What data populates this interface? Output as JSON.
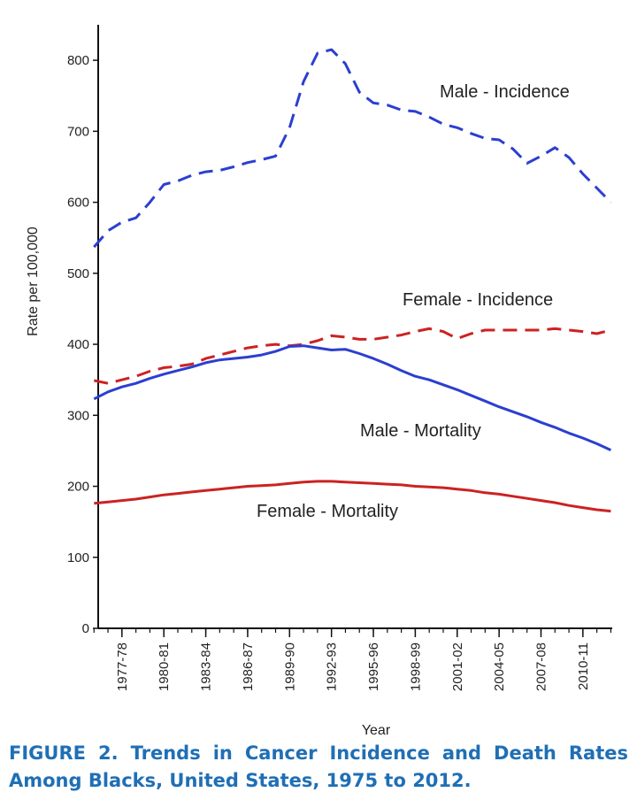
{
  "caption": {
    "line1": "FIGURE 2. Trends in Cancer Incidence and Death Rates",
    "line2": "Among Blacks, United States, 1975 to 2012."
  },
  "chart_data": {
    "type": "line",
    "xlabel": "Year",
    "ylabel": "Rate per 100,000",
    "ylim": [
      0,
      850
    ],
    "yticks": [
      0,
      100,
      200,
      300,
      400,
      500,
      600,
      700,
      800
    ],
    "x": [
      1975,
      1976,
      1977,
      1978,
      1979,
      1980,
      1981,
      1982,
      1983,
      1984,
      1985,
      1986,
      1987,
      1988,
      1989,
      1990,
      1991,
      1992,
      1993,
      1994,
      1995,
      1996,
      1997,
      1998,
      1999,
      2000,
      2001,
      2002,
      2003,
      2004,
      2005,
      2006,
      2007,
      2008,
      2009,
      2010,
      2011,
      2012
    ],
    "xticks": [
      {
        "x": 1977,
        "label": "1977-78"
      },
      {
        "x": 1980,
        "label": "1980-81"
      },
      {
        "x": 1983,
        "label": "1983-84"
      },
      {
        "x": 1986,
        "label": "1986-87"
      },
      {
        "x": 1989,
        "label": "1989-90"
      },
      {
        "x": 1992,
        "label": "1992-93"
      },
      {
        "x": 1995,
        "label": "1995-96"
      },
      {
        "x": 1998,
        "label": "1998-99"
      },
      {
        "x": 2001,
        "label": "2001-02"
      },
      {
        "x": 2004,
        "label": "2004-05"
      },
      {
        "x": 2007,
        "label": "2007-08"
      },
      {
        "x": 2010,
        "label": "2010-11"
      }
    ],
    "grid": false,
    "series": [
      {
        "name": "Male - Incidence",
        "color": "#2b3fd0",
        "style": "dashed",
        "values": [
          537,
          560,
          572,
          578,
          600,
          625,
          630,
          638,
          643,
          645,
          650,
          656,
          660,
          665,
          705,
          770,
          810,
          815,
          795,
          755,
          740,
          737,
          730,
          728,
          720,
          710,
          705,
          697,
          690,
          688,
          675,
          655,
          665,
          677,
          663,
          640,
          620,
          600
        ]
      },
      {
        "name": "Female - Incidence",
        "color": "#cc2222",
        "style": "dashed",
        "values": [
          349,
          345,
          350,
          355,
          362,
          367,
          369,
          372,
          380,
          385,
          390,
          395,
          398,
          400,
          398,
          400,
          405,
          412,
          410,
          407,
          407,
          410,
          413,
          418,
          422,
          418,
          408,
          415,
          420,
          420,
          420,
          420,
          420,
          422,
          420,
          418,
          415,
          420
        ]
      },
      {
        "name": "Male - Mortality",
        "color": "#2b3fd0",
        "style": "solid",
        "values": [
          323,
          333,
          340,
          345,
          352,
          358,
          363,
          368,
          374,
          378,
          380,
          382,
          385,
          390,
          397,
          398,
          395,
          392,
          393,
          387,
          380,
          372,
          363,
          355,
          350,
          343,
          336,
          328,
          320,
          312,
          305,
          298,
          290,
          283,
          275,
          268,
          260,
          251
        ]
      },
      {
        "name": "Female - Mortality",
        "color": "#cc2222",
        "style": "solid",
        "values": [
          176,
          178,
          180,
          182,
          185,
          188,
          190,
          192,
          194,
          196,
          198,
          200,
          201,
          202,
          204,
          206,
          207,
          207,
          206,
          205,
          204,
          203,
          202,
          200,
          199,
          198,
          196,
          194,
          191,
          189,
          186,
          183,
          180,
          177,
          173,
          170,
          167,
          165
        ]
      }
    ]
  }
}
